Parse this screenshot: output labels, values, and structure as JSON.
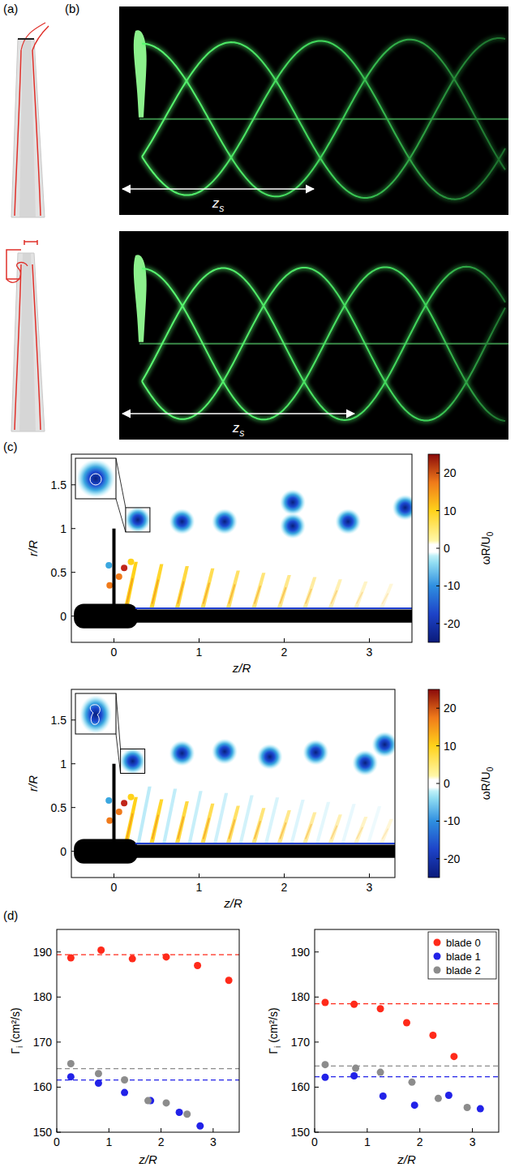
{
  "panel_labels": [
    "(a)",
    "(b)",
    "(c)",
    "(d)"
  ],
  "photos": [
    {
      "annotation": {
        "text": "z",
        "sub": "s"
      }
    },
    {
      "annotation": {
        "text": "z",
        "sub": "s"
      }
    }
  ],
  "chart_data": [
    {
      "type": "scatter",
      "xlabel": "z/R",
      "ylabel": "r/R",
      "xlim": [
        -0.5,
        3.5
      ],
      "ylim": [
        -0.3,
        1.85
      ],
      "xticks": [
        0,
        1,
        2,
        3
      ],
      "yticks": [
        0,
        0.5,
        1,
        1.5
      ],
      "x": [
        0.28,
        0.8,
        1.3,
        2.1,
        2.1,
        2.75,
        3.42
      ],
      "values": [
        1.1,
        1.08,
        1.08,
        1.3,
        1.03,
        1.08,
        1.24
      ],
      "colorbar": {
        "label": {
          "text": "ωR/U",
          "sub": "0"
        },
        "range": [
          -25,
          25
        ],
        "ticks": [
          -20,
          -10,
          0,
          10,
          20
        ]
      }
    },
    {
      "type": "scatter",
      "xlabel": "z/R",
      "ylabel": "r/R",
      "xlim": [
        -0.5,
        3.3
      ],
      "ylim": [
        -0.3,
        1.85
      ],
      "xticks": [
        0,
        1,
        2,
        3
      ],
      "yticks": [
        0,
        0.5,
        1,
        1.5
      ],
      "x": [
        0.22,
        0.8,
        1.3,
        1.83,
        2.37,
        2.95,
        3.18
      ],
      "values": [
        1.03,
        1.12,
        1.14,
        1.08,
        1.13,
        1.01,
        1.22
      ],
      "colorbar": {
        "label": {
          "text": "ωR/U",
          "sub": "0"
        },
        "range": [
          -25,
          25
        ],
        "ticks": [
          -20,
          -10,
          0,
          10,
          20
        ]
      }
    },
    {
      "type": "scatter",
      "xlabel": "z/R",
      "ylabel": {
        "text": "Γ",
        "sub": "i",
        "rest": " (cm²/s)"
      },
      "xlim": [
        0,
        3.5
      ],
      "ylim": [
        150,
        195
      ],
      "xticks": [
        0,
        1,
        2,
        3
      ],
      "yticks": [
        150,
        160,
        170,
        180,
        190
      ],
      "series": [
        {
          "name": "blade 0",
          "color": "#ff2a1a",
          "marker": "circle",
          "x": [
            0.27,
            0.85,
            1.45,
            2.1,
            2.7,
            3.3
          ],
          "values": [
            188.7,
            190.4,
            188.5,
            188.9,
            187.0,
            183.7
          ],
          "mean": 189.4
        },
        {
          "name": "blade 1",
          "color": "#2222e8",
          "marker": "circle",
          "x": [
            0.27,
            0.8,
            1.3,
            1.8,
            2.35,
            2.75
          ],
          "values": [
            162.3,
            160.9,
            158.8,
            157.0,
            154.4,
            151.4
          ],
          "mean": 161.6
        },
        {
          "name": "blade 2",
          "color": "#8c8c8c",
          "marker": "circle",
          "x": [
            0.27,
            0.8,
            1.3,
            1.75,
            2.1,
            2.5
          ],
          "values": [
            165.2,
            163.0,
            161.6,
            157.0,
            156.5,
            154.0
          ],
          "mean": 164.1
        }
      ]
    },
    {
      "type": "scatter",
      "xlabel": "z/R",
      "ylabel": {
        "text": "Γ",
        "sub": "i",
        "rest": " (cm²/s)"
      },
      "xlim": [
        0,
        3.5
      ],
      "ylim": [
        150,
        195
      ],
      "xticks": [
        0,
        1,
        2,
        3
      ],
      "yticks": [
        150,
        160,
        170,
        180,
        190
      ],
      "legend": "upper right",
      "series": [
        {
          "name": "blade 0",
          "color": "#ff2a1a",
          "marker": "circle",
          "x": [
            0.2,
            0.75,
            1.25,
            1.75,
            2.25,
            2.65
          ],
          "values": [
            178.8,
            178.4,
            177.4,
            174.3,
            171.5,
            166.8
          ],
          "mean": 178.5
        },
        {
          "name": "blade 1",
          "color": "#2222e8",
          "marker": "circle",
          "x": [
            0.2,
            0.75,
            1.3,
            1.9,
            2.55,
            3.15
          ],
          "values": [
            162.2,
            162.5,
            158.0,
            156.0,
            158.2,
            155.2
          ],
          "mean": 162.3
        },
        {
          "name": "blade 2",
          "color": "#8c8c8c",
          "marker": "circle",
          "x": [
            0.2,
            0.78,
            1.25,
            1.85,
            2.35,
            2.9
          ],
          "values": [
            165.0,
            164.2,
            163.3,
            161.1,
            157.5,
            155.5
          ],
          "mean": 164.7
        }
      ]
    }
  ]
}
